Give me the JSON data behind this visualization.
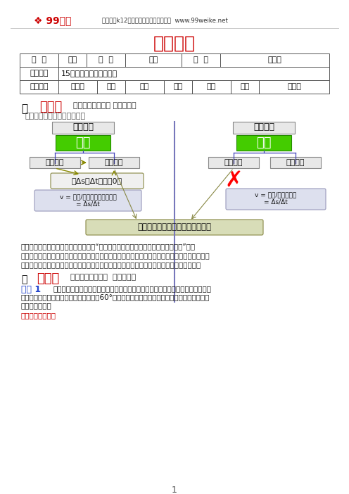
{
  "title_header": "课程信息",
  "logo_text": "99微课",
  "logo_subtitle": "中国专注k12在线教育的优质内容提供商  www.99weike.net",
  "title": "课程信息",
  "row1": [
    "年  级",
    "高一",
    "学  科",
    "物理",
    "版  本",
    "通用版"
  ],
  "row2_label": "课程标题",
  "row2_value": "15分钟让你学会平均速度",
  "row3": [
    "编稿老师",
    "惠利成",
    "一校",
    "林卉",
    "二校",
    "黄楠",
    "审核",
    "曹文慧"
  ],
  "sec1_title": "析考点",
  "sec1_sub": "【重点难点易错点 点点新通】",
  "sec1_desc": "有关速度的物理量之间的关系",
  "left_box1": "矢量范捧",
  "right_box1": "标量范捧",
  "center_left": "速度",
  "center_right": "速率",
  "node_ll": "平均速度",
  "node_lm": "瞬时速度",
  "node_rl": "瞬时速率",
  "node_rr": "平均速率",
  "condition_box": "当Δs或Δt趋近于0时",
  "formula_left_line1": "v = 位移/产生位移所用的时间",
  "formula_left_line2": "= Δs/Δt",
  "formula_right_line1": "v = 路程/所用的时间",
  "formula_right_line2": "= Δs/Δt",
  "bottom_box": "把矢量变为标量，剔除方向的因素",
  "para1_line1": "解决有关平均速度问题的技巧是抓住：“哪一段时间（或哪一段位移）内的平均速度”，位",
  "para1_line2": "移和该段位移所对应的时间的确定是解题的突破口，只要抓住了这两个方面，题目就可迎刀而解。",
  "para1_line3": "对于比较复杂的题目，还要画出示意图来帮助我们理清思路，找到思路，下面我们来看例题。",
  "sec2_title": "巧解题",
  "sec2_sub": "【真题题源名校题  题题经典】",
  "ex_label": "例题 1",
  "ex_line1": "一架飞机水平匀速的在某位同学头顶飞过，当他听到飞机的发动机声从头顶正上方",
  "ex_line2": "飞米时，发现飞机在他前上方约与地面成60°角的方向上，据此可估算出此飞机的平均速度约为",
  "ex_line3": "声速的多少倍？",
  "sol_text": "解析：如图所示。",
  "page_num": "1",
  "bg_color": "#ffffff",
  "red_color": "#cc0000",
  "green_color": "#44cc00",
  "blue_dashed": "#7777bb",
  "olive_color": "#888800",
  "box_bg": "#e8e8e8",
  "formula_bg": "#dde0ee",
  "bottom_bg": "#d8ddb8"
}
